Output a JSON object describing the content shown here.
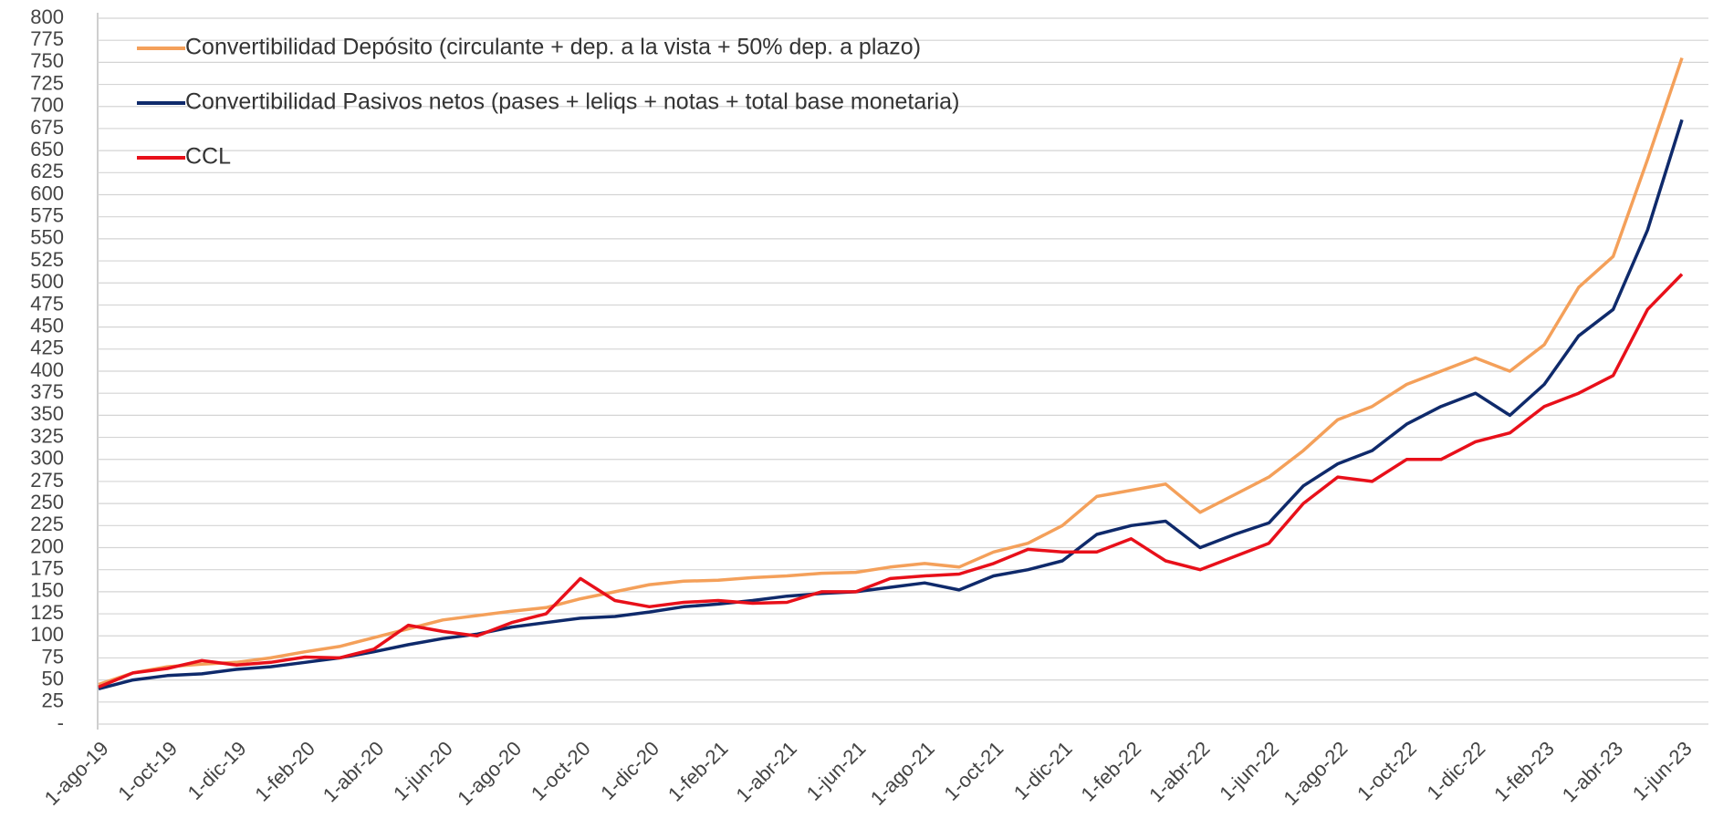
{
  "chart_data": {
    "type": "line",
    "categories": [
      "1-ago-19",
      null,
      "1-oct-19",
      null,
      "1-dic-19",
      null,
      "1-feb-20",
      null,
      "1-abr-20",
      null,
      "1-jun-20",
      null,
      "1-ago-20",
      null,
      "1-oct-20",
      null,
      "1-dic-20",
      null,
      "1-feb-21",
      null,
      "1-abr-21",
      null,
      "1-jun-21",
      null,
      "1-ago-21",
      null,
      "1-oct-21",
      null,
      "1-dic-21",
      null,
      "1-feb-22",
      null,
      "1-abr-22",
      null,
      "1-jun-22",
      null,
      "1-ago-22",
      null,
      "1-oct-22",
      null,
      "1-dic-22",
      null,
      "1-feb-23",
      null,
      "1-abr-23",
      null,
      "1-jun-23"
    ],
    "series": [
      {
        "name": "Convertibilidad Depósito (circulante + dep. a la vista + 50% dep. a plazo)",
        "color": "#f4a05a",
        "values": [
          45,
          58,
          65,
          68,
          70,
          75,
          82,
          88,
          98,
          108,
          118,
          123,
          128,
          132,
          142,
          150,
          158,
          162,
          163,
          166,
          168,
          171,
          172,
          178,
          182,
          178,
          195,
          205,
          225,
          258,
          265,
          272,
          240,
          260,
          280,
          310,
          345,
          360,
          385,
          400,
          415,
          400,
          430,
          495,
          530,
          640,
          755
        ]
      },
      {
        "name": "Convertibilidad Pasivos netos (pases + leliqs + notas + total base monetaria)",
        "color": "#0f2a6b",
        "values": [
          40,
          50,
          55,
          57,
          62,
          65,
          70,
          75,
          82,
          90,
          97,
          102,
          110,
          115,
          120,
          122,
          127,
          133,
          136,
          140,
          145,
          148,
          150,
          155,
          160,
          152,
          168,
          175,
          185,
          215,
          225,
          230,
          200,
          215,
          228,
          270,
          295,
          310,
          340,
          360,
          375,
          350,
          385,
          440,
          470,
          560,
          685
        ]
      },
      {
        "name": "CCL",
        "color": "#e8101a",
        "values": [
          42,
          58,
          63,
          72,
          67,
          70,
          76,
          75,
          85,
          112,
          105,
          100,
          115,
          125,
          165,
          140,
          133,
          138,
          140,
          137,
          138,
          150,
          150,
          165,
          168,
          170,
          182,
          198,
          195,
          195,
          210,
          185,
          175,
          190,
          205,
          250,
          280,
          275,
          300,
          300,
          320,
          330,
          360,
          375,
          395,
          470,
          510
        ]
      }
    ],
    "ylim": [
      0,
      800
    ],
    "yticks": [
      {
        "value": 0,
        "label": "-"
      },
      25,
      50,
      75,
      100,
      125,
      150,
      175,
      200,
      225,
      250,
      275,
      300,
      325,
      350,
      375,
      400,
      425,
      450,
      475,
      500,
      525,
      550,
      575,
      600,
      625,
      650,
      675,
      700,
      725,
      750,
      775,
      800
    ],
    "grid": true,
    "legend": "upper left"
  }
}
